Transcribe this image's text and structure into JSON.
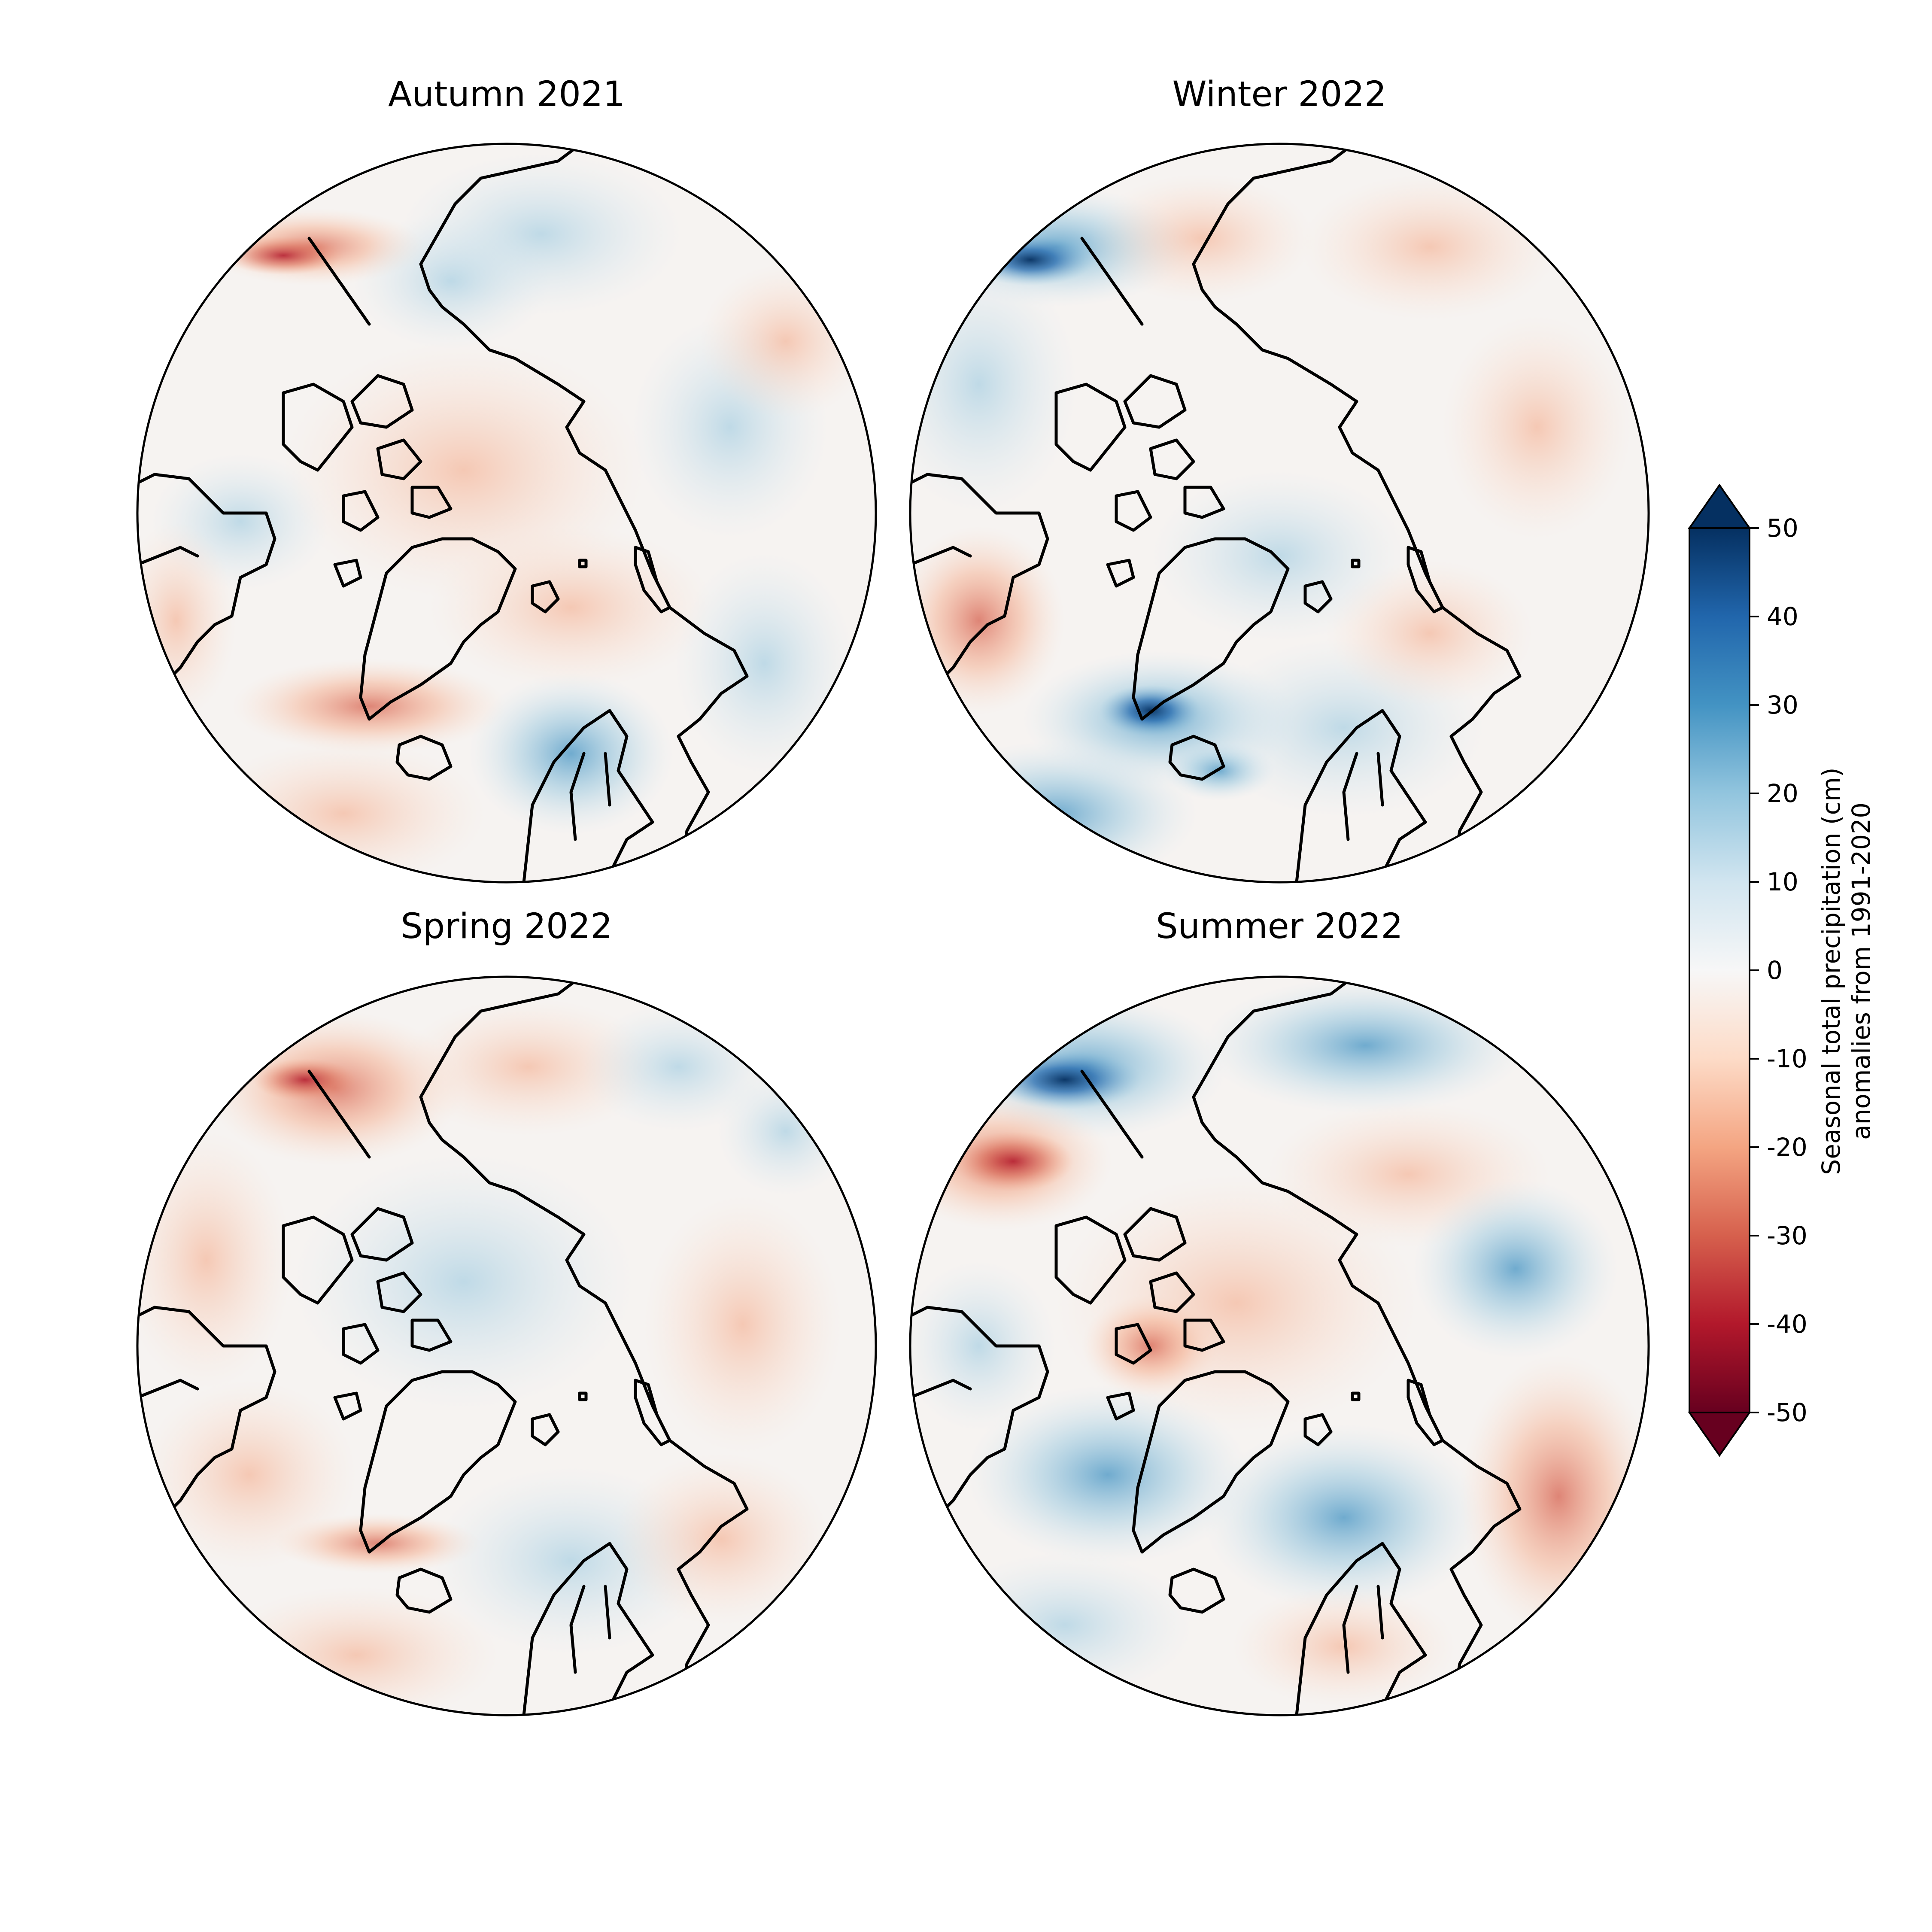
{
  "figure": {
    "panels": [
      {
        "id": "autumn",
        "title": "Autumn 2021"
      },
      {
        "id": "winter",
        "title": "Winter 2022"
      },
      {
        "id": "spring",
        "title": "Spring 2022"
      },
      {
        "id": "summer",
        "title": "Summer 2022"
      }
    ],
    "colorbar": {
      "label_line1": "Seasonal total precipitation (cm)",
      "label_line2": "anomalies from 1991-2020",
      "ticks": [
        "50",
        "40",
        "30",
        "20",
        "10",
        "0",
        "-10",
        "-20",
        "-30",
        "-40",
        "-50"
      ],
      "range": [
        -50,
        50
      ],
      "extend": "both",
      "colormap": "RdBu"
    }
  },
  "colors": {
    "negative_max": "#67001f",
    "neutral": "#f7f7f7",
    "positive_max": "#053061"
  }
}
